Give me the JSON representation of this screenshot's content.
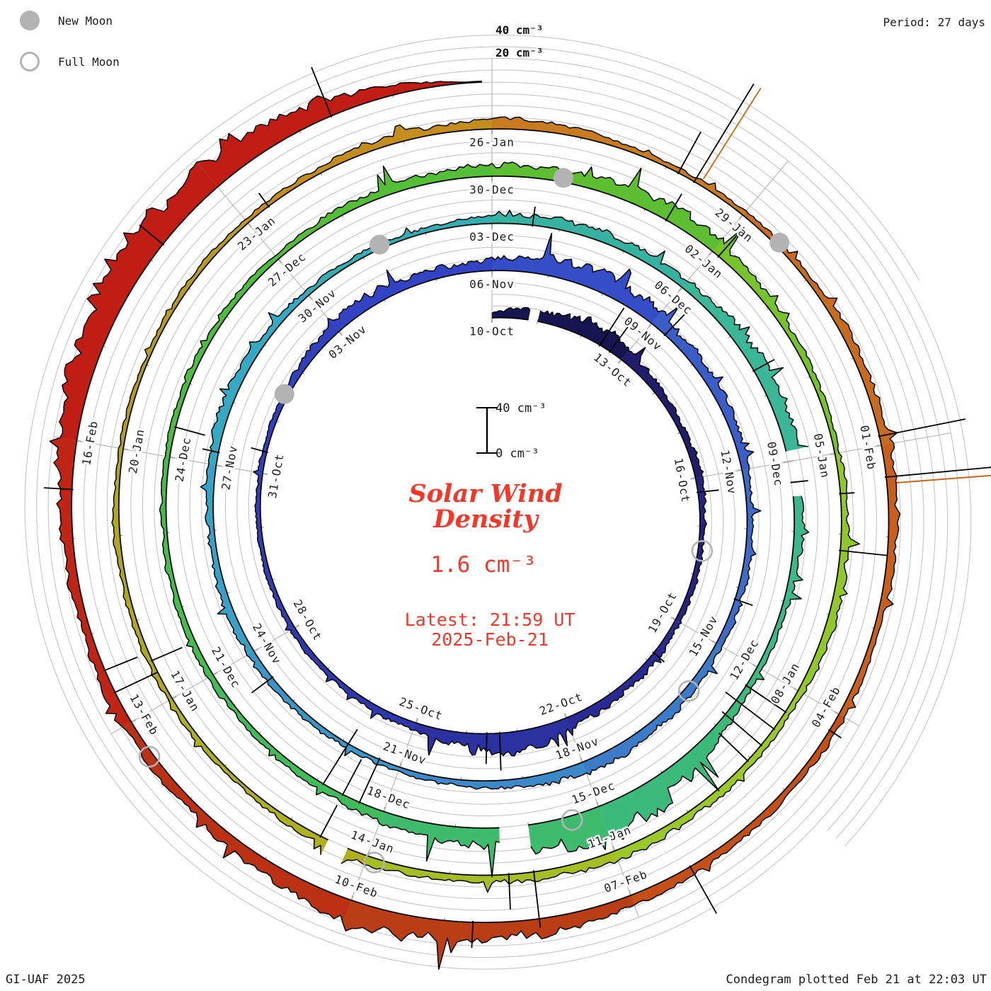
{
  "legend": {
    "new_moon_label": "New Moon",
    "full_moon_label": "Full Moon"
  },
  "header": {
    "period_label": "Period: 27 days"
  },
  "outer_axis_labels": {
    "forty": "40 cm⁻³",
    "twenty": "20 cm⁻³"
  },
  "center": {
    "scale_top": "40 cm⁻³",
    "scale_bottom": "0 cm⁻³",
    "title_line1": "Solar Wind",
    "title_line2": "Density",
    "current_value": "1.6 cm⁻³",
    "latest_line1": "Latest: 21:59 UT",
    "latest_line2": "2025-Feb-21",
    "accent_color": "#f5372a"
  },
  "footer": {
    "left": "GI-UAF 2025",
    "right": "Condegram plotted Feb 21 at 22:03 UT"
  },
  "chart_data": {
    "type": "area",
    "variant": "condegram-polar-spiral",
    "title": "Solar Wind Density",
    "units": "cm⁻³",
    "period_days": 27,
    "angle_step_days": 3,
    "start_label": "10-Oct",
    "latest_label": "2025-Feb-21 21:59 UT",
    "value_gridlines": [
      10,
      20,
      30,
      40
    ],
    "value_axis_max": 40,
    "date_labels": [
      {
        "day": 0,
        "label": "10-Oct"
      },
      {
        "day": 3,
        "label": "13-Oct"
      },
      {
        "day": 6,
        "label": "16-Oct"
      },
      {
        "day": 9,
        "label": "19-Oct"
      },
      {
        "day": 12,
        "label": "22-Oct"
      },
      {
        "day": 15,
        "label": "25-Oct"
      },
      {
        "day": 18,
        "label": "28-Oct"
      },
      {
        "day": 21,
        "label": "31-Oct"
      },
      {
        "day": 24,
        "label": "03-Nov"
      },
      {
        "day": 27,
        "label": "06-Nov"
      },
      {
        "day": 30,
        "label": "09-Nov"
      },
      {
        "day": 33,
        "label": "12-Nov"
      },
      {
        "day": 36,
        "label": "15-Nov"
      },
      {
        "day": 39,
        "label": "18-Nov"
      },
      {
        "day": 42,
        "label": "21-Nov"
      },
      {
        "day": 45,
        "label": "24-Nov"
      },
      {
        "day": 48,
        "label": "27-Nov"
      },
      {
        "day": 51,
        "label": "30-Nov"
      },
      {
        "day": 54,
        "label": "03-Dec"
      },
      {
        "day": 57,
        "label": "06-Dec"
      },
      {
        "day": 60,
        "label": "09-Dec"
      },
      {
        "day": 63,
        "label": "12-Dec"
      },
      {
        "day": 66,
        "label": "15-Dec"
      },
      {
        "day": 69,
        "label": "18-Dec"
      },
      {
        "day": 72,
        "label": "21-Dec"
      },
      {
        "day": 75,
        "label": "24-Dec"
      },
      {
        "day": 78,
        "label": "27-Dec"
      },
      {
        "day": 81,
        "label": "30-Dec"
      },
      {
        "day": 84,
        "label": "02-Jan"
      },
      {
        "day": 87,
        "label": "05-Jan"
      },
      {
        "day": 90,
        "label": "08-Jan"
      },
      {
        "day": 93,
        "label": "11-Jan"
      },
      {
        "day": 96,
        "label": "14-Jan"
      },
      {
        "day": 99,
        "label": "17-Jan"
      },
      {
        "day": 102,
        "label": "20-Jan"
      },
      {
        "day": 105,
        "label": "23-Jan"
      },
      {
        "day": 108,
        "label": "26-Jan"
      },
      {
        "day": 111,
        "label": "29-Jan"
      },
      {
        "day": 114,
        "label": "01-Feb"
      },
      {
        "day": 117,
        "label": "04-Feb"
      },
      {
        "day": 120,
        "label": "07-Feb"
      },
      {
        "day": 123,
        "label": "10-Feb"
      },
      {
        "day": 126,
        "label": "13-Feb"
      },
      {
        "day": 129,
        "label": "16-Feb"
      }
    ],
    "daily_density_cm3": [
      7,
      9,
      16,
      12,
      6,
      5,
      6,
      4,
      4,
      5,
      6,
      7,
      10,
      18,
      14,
      7,
      5,
      4,
      5,
      4,
      4,
      4,
      4,
      6,
      9,
      11,
      8,
      10,
      14,
      16,
      12,
      9,
      7,
      6,
      5,
      6,
      5,
      7,
      9,
      11,
      7,
      5,
      4,
      4,
      5,
      7,
      6,
      5,
      7,
      9,
      6,
      5,
      4,
      4,
      6,
      9,
      8,
      7,
      11,
      13,
      9,
      7,
      5,
      5,
      8,
      22,
      28,
      18,
      12,
      9,
      6,
      5,
      5,
      5,
      4,
      4,
      5,
      5,
      4,
      6,
      8,
      10,
      9,
      13,
      11,
      7,
      5,
      5,
      6,
      7,
      6,
      5,
      7,
      9,
      7,
      5,
      7,
      5,
      4,
      4,
      4,
      5,
      4,
      3,
      4,
      4,
      5,
      7,
      9,
      6,
      4,
      4,
      5,
      7,
      9,
      7,
      5,
      6,
      5,
      6,
      9,
      13,
      16,
      19,
      12,
      7,
      9,
      7,
      9,
      14,
      22,
      27,
      25,
      18,
      8
    ],
    "spikes": [
      {
        "day": 2.45,
        "value": 38,
        "dir": 1
      },
      {
        "day": 2.7,
        "value": 30,
        "dir": 1
      },
      {
        "day": 6.3,
        "value": 18,
        "dir": 1
      },
      {
        "day": 9.8,
        "value": 12,
        "dir": 1
      },
      {
        "day": 13.35,
        "value": 32,
        "dir": 1
      },
      {
        "day": 13.6,
        "value": 26,
        "dir": 1
      },
      {
        "day": 21.4,
        "value": 14,
        "dir": 1
      },
      {
        "day": 30.3,
        "value": 24,
        "dir": 1
      },
      {
        "day": 35.2,
        "value": 16,
        "dir": 1
      },
      {
        "day": 44.5,
        "value": 22,
        "dir": 1
      },
      {
        "day": 48.2,
        "value": 14,
        "dir": 1
      },
      {
        "day": 54.6,
        "value": 16,
        "dir": 1
      },
      {
        "day": 58.6,
        "value": 20,
        "dir": 1
      },
      {
        "day": 60.3,
        "value": 14,
        "dir": 1
      },
      {
        "day": 63.3,
        "value": 18,
        "dir": 1
      },
      {
        "day": 69.35,
        "value": 42,
        "dir": -1
      },
      {
        "day": 69.6,
        "value": 34,
        "dir": -1
      },
      {
        "day": 69.9,
        "value": 55,
        "dir": -1
      },
      {
        "day": 75.4,
        "value": 26,
        "dir": -1
      },
      {
        "day": 83.3,
        "value": 26,
        "dir": 1
      },
      {
        "day": 84.1,
        "value": 24,
        "dir": 1
      },
      {
        "day": 87.5,
        "value": 12,
        "dir": 1
      },
      {
        "day": 88.2,
        "value": 40,
        "dir": 1
      },
      {
        "day": 90.3,
        "value": 40,
        "dir": -1
      },
      {
        "day": 90.55,
        "value": 52,
        "dir": -1
      },
      {
        "day": 90.8,
        "value": 44,
        "dir": -1
      },
      {
        "day": 91.05,
        "value": 34,
        "dir": -1
      },
      {
        "day": 94.0,
        "value": 48,
        "dir": 1
      },
      {
        "day": 94.3,
        "value": 30,
        "dir": 1
      },
      {
        "day": 96.6,
        "value": 30,
        "dir": -1
      },
      {
        "day": 99.5,
        "value": 28,
        "dir": -1
      },
      {
        "day": 105.3,
        "value": 14,
        "dir": 1
      },
      {
        "day": 110.15,
        "value": 40,
        "dir": 1
      },
      {
        "day": 110.35,
        "value": 98,
        "dir": 1,
        "tint": true
      },
      {
        "day": 113.9,
        "value": 75,
        "dir": 1
      },
      {
        "day": 114.35,
        "value": 92,
        "dir": 1,
        "tint": true
      },
      {
        "day": 117.2,
        "value": 12,
        "dir": 1
      },
      {
        "day": 119.3,
        "value": 46,
        "dir": 1
      },
      {
        "day": 121.7,
        "value": 22,
        "dir": 1
      },
      {
        "day": 126.35,
        "value": 40,
        "dir": -1
      },
      {
        "day": 126.6,
        "value": 30,
        "dir": -1
      },
      {
        "day": 128.5,
        "value": 24,
        "dir": 1
      },
      {
        "day": 131.2,
        "value": 26,
        "dir": 1
      },
      {
        "day": 133.35,
        "value": 45,
        "dir": 1
      }
    ],
    "data_gaps_days": [
      [
        0.82,
        1.0
      ],
      [
        59.85,
        60.45
      ],
      [
        67.0,
        67.35
      ],
      [
        96.25,
        96.45
      ]
    ],
    "color_stops": [
      {
        "day": 0,
        "color": "#131143"
      },
      {
        "day": 6,
        "color": "#23217a"
      },
      {
        "day": 12,
        "color": "#2b2d9c"
      },
      {
        "day": 18,
        "color": "#2f3bb4"
      },
      {
        "day": 27,
        "color": "#3346c6"
      },
      {
        "day": 33,
        "color": "#3c64c8"
      },
      {
        "day": 39,
        "color": "#3c82c8"
      },
      {
        "day": 45,
        "color": "#389ec8"
      },
      {
        "day": 51,
        "color": "#33adc2"
      },
      {
        "day": 54,
        "color": "#34afa4"
      },
      {
        "day": 60,
        "color": "#3cb992"
      },
      {
        "day": 66,
        "color": "#3cba74"
      },
      {
        "day": 72,
        "color": "#42bd52"
      },
      {
        "day": 78,
        "color": "#4fbe38"
      },
      {
        "day": 84,
        "color": "#62be2e"
      },
      {
        "day": 87,
        "color": "#8cc828"
      },
      {
        "day": 93,
        "color": "#9ec828"
      },
      {
        "day": 96,
        "color": "#aeb41e"
      },
      {
        "day": 102,
        "color": "#b2a41e"
      },
      {
        "day": 105,
        "color": "#c0941e"
      },
      {
        "day": 108,
        "color": "#c8871f"
      },
      {
        "day": 111,
        "color": "#c8701e"
      },
      {
        "day": 117,
        "color": "#c85a1a"
      },
      {
        "day": 120,
        "color": "#c04515"
      },
      {
        "day": 123,
        "color": "#b43714"
      },
      {
        "day": 126,
        "color": "#c02a14"
      },
      {
        "day": 129,
        "color": "#c01e14"
      },
      {
        "day": 134,
        "color": "#c01e14"
      }
    ],
    "moons": {
      "new_moon_days": [
        22.5,
        52.3,
        81.9,
        111.5
      ],
      "full_moon_days": [
        7.5,
        36.9,
        66.4,
        95.9,
        125.6
      ]
    },
    "end_day": 134.92,
    "grid_color": "#c5c5c5",
    "spoke_color": "#b9b9b9",
    "moon_color": "#b3b3b3",
    "trace_color": "#000000",
    "label_color": "#1c1c1c"
  }
}
